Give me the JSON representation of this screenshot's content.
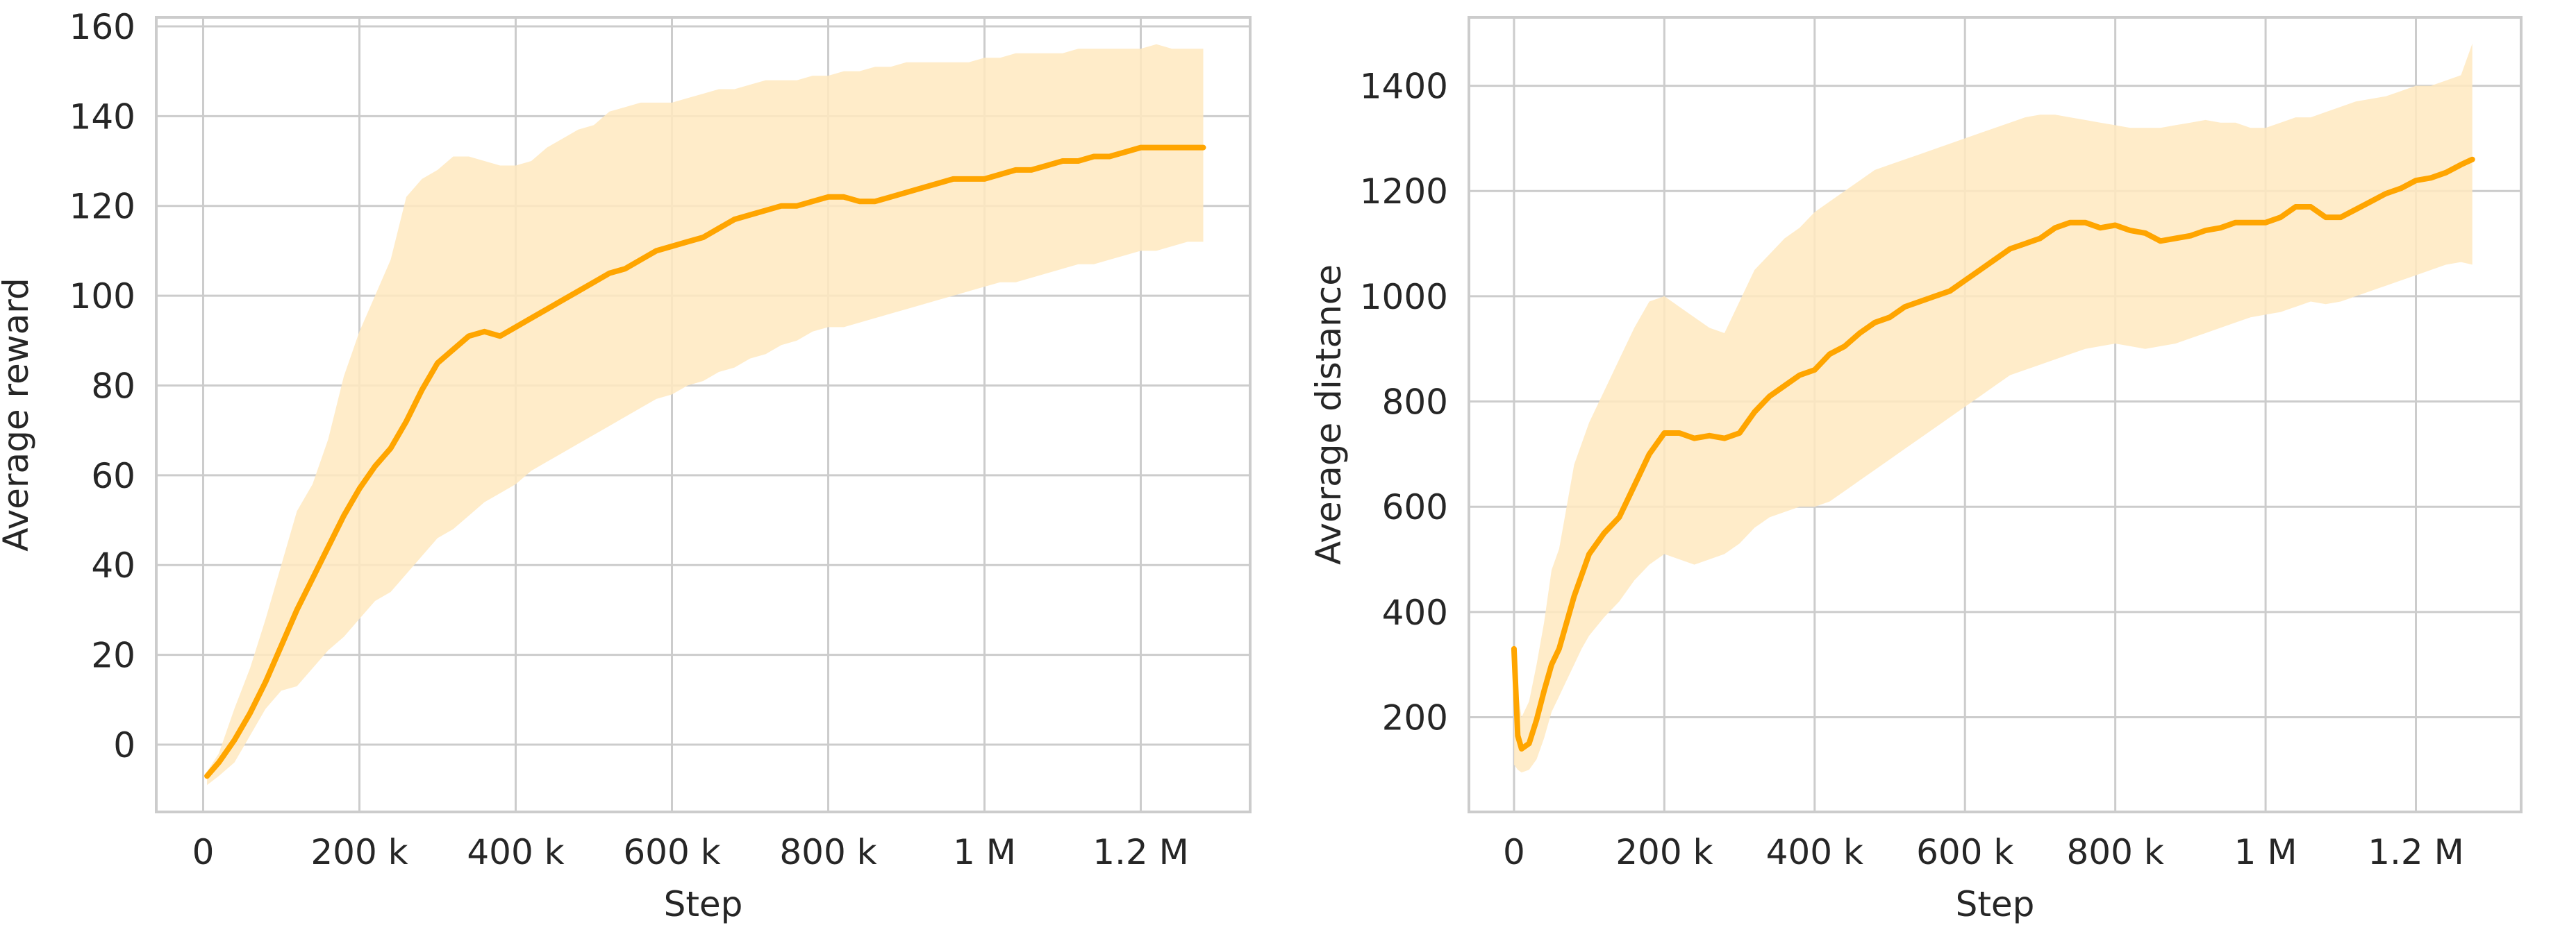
{
  "colors": {
    "line": "#ffa500",
    "band": "#ffe9bf",
    "grid": "#cccccc",
    "text": "#262626"
  },
  "chart_data": [
    {
      "type": "line",
      "title": "",
      "xlabel": "Step",
      "ylabel": "Average reward",
      "xlim": [
        -60000,
        1340000
      ],
      "ylim": [
        -15,
        162
      ],
      "grid": true,
      "xticks": [
        {
          "value": 0,
          "label": "0"
        },
        {
          "value": 200000,
          "label": "200 k"
        },
        {
          "value": 400000,
          "label": "400 k"
        },
        {
          "value": 600000,
          "label": "600 k"
        },
        {
          "value": 800000,
          "label": "800 k"
        },
        {
          "value": 1000000,
          "label": "1 M"
        },
        {
          "value": 1200000,
          "label": "1.2 M"
        }
      ],
      "yticks": [
        {
          "value": 0,
          "label": "0"
        },
        {
          "value": 20,
          "label": "20"
        },
        {
          "value": 40,
          "label": "40"
        },
        {
          "value": 60,
          "label": "60"
        },
        {
          "value": 80,
          "label": "80"
        },
        {
          "value": 100,
          "label": "100"
        },
        {
          "value": 120,
          "label": "120"
        },
        {
          "value": 140,
          "label": "140"
        },
        {
          "value": 160,
          "label": "160"
        }
      ],
      "series": [
        {
          "x": [
            5000,
            20000,
            40000,
            60000,
            80000,
            100000,
            120000,
            140000,
            160000,
            180000,
            200000,
            220000,
            240000,
            260000,
            280000,
            300000,
            320000,
            340000,
            360000,
            380000,
            400000,
            420000,
            440000,
            460000,
            480000,
            500000,
            520000,
            540000,
            560000,
            580000,
            600000,
            620000,
            640000,
            660000,
            680000,
            700000,
            720000,
            740000,
            760000,
            780000,
            800000,
            820000,
            840000,
            860000,
            880000,
            900000,
            920000,
            940000,
            960000,
            980000,
            1000000,
            1020000,
            1040000,
            1060000,
            1080000,
            1100000,
            1120000,
            1140000,
            1160000,
            1180000,
            1200000,
            1220000,
            1240000,
            1260000,
            1280000
          ],
          "y": [
            -7,
            -4,
            1,
            7,
            14,
            22,
            30,
            37,
            44,
            51,
            57,
            62,
            66,
            72,
            79,
            85,
            88,
            91,
            92,
            91,
            93,
            95,
            97,
            99,
            101,
            103,
            105,
            106,
            108,
            110,
            111,
            112,
            113,
            115,
            117,
            118,
            119,
            120,
            120,
            121,
            122,
            122,
            121,
            121,
            122,
            123,
            124,
            125,
            126,
            126,
            126,
            127,
            128,
            128,
            129,
            130,
            130,
            131,
            131,
            132,
            133,
            133,
            133,
            133,
            133
          ],
          "lower": [
            -9,
            -7,
            -4,
            2,
            8,
            12,
            13,
            17,
            21,
            24,
            28,
            32,
            34,
            38,
            42,
            46,
            48,
            51,
            54,
            56,
            58,
            61,
            63,
            65,
            67,
            69,
            71,
            73,
            75,
            77,
            78,
            80,
            81,
            83,
            84,
            86,
            87,
            89,
            90,
            92,
            93,
            93,
            94,
            95,
            96,
            97,
            98,
            99,
            100,
            101,
            102,
            103,
            103,
            104,
            105,
            106,
            107,
            107,
            108,
            109,
            110,
            110,
            111,
            112,
            112
          ],
          "upper": [
            -6,
            -2,
            8,
            17,
            28,
            40,
            52,
            58,
            68,
            82,
            92,
            100,
            108,
            122,
            126,
            128,
            131,
            131,
            130,
            129,
            129,
            130,
            133,
            135,
            137,
            138,
            141,
            142,
            143,
            143,
            143,
            144,
            145,
            146,
            146,
            147,
            148,
            148,
            148,
            149,
            149,
            150,
            150,
            151,
            151,
            152,
            152,
            152,
            152,
            152,
            153,
            153,
            154,
            154,
            154,
            154,
            155,
            155,
            155,
            155,
            155,
            156,
            155,
            155,
            155
          ]
        }
      ]
    },
    {
      "type": "line",
      "title": "",
      "xlabel": "Step",
      "ylabel": "Average distance",
      "xlim": [
        -60000,
        1340000
      ],
      "ylim": [
        20,
        1530
      ],
      "grid": true,
      "xticks": [
        {
          "value": 0,
          "label": "0"
        },
        {
          "value": 200000,
          "label": "200 k"
        },
        {
          "value": 400000,
          "label": "400 k"
        },
        {
          "value": 600000,
          "label": "600 k"
        },
        {
          "value": 800000,
          "label": "800 k"
        },
        {
          "value": 1000000,
          "label": "1 M"
        },
        {
          "value": 1200000,
          "label": "1.2 M"
        }
      ],
      "yticks": [
        {
          "value": 200,
          "label": "200"
        },
        {
          "value": 400,
          "label": "400"
        },
        {
          "value": 600,
          "label": "600"
        },
        {
          "value": 800,
          "label": "800"
        },
        {
          "value": 1000,
          "label": "1000"
        },
        {
          "value": 1200,
          "label": "1200"
        },
        {
          "value": 1400,
          "label": "1400"
        }
      ],
      "series": [
        {
          "x": [
            0,
            5000,
            10000,
            20000,
            30000,
            40000,
            50000,
            60000,
            70000,
            80000,
            90000,
            100000,
            120000,
            140000,
            160000,
            180000,
            200000,
            220000,
            240000,
            260000,
            280000,
            300000,
            320000,
            340000,
            360000,
            380000,
            400000,
            420000,
            440000,
            460000,
            480000,
            500000,
            520000,
            540000,
            560000,
            580000,
            600000,
            620000,
            640000,
            660000,
            680000,
            700000,
            720000,
            740000,
            760000,
            780000,
            800000,
            820000,
            840000,
            860000,
            880000,
            900000,
            920000,
            940000,
            960000,
            980000,
            1000000,
            1020000,
            1040000,
            1060000,
            1080000,
            1100000,
            1120000,
            1140000,
            1160000,
            1180000,
            1200000,
            1220000,
            1240000,
            1260000,
            1275000
          ],
          "y": [
            330,
            165,
            140,
            150,
            195,
            250,
            300,
            330,
            380,
            430,
            470,
            510,
            550,
            580,
            640,
            700,
            740,
            740,
            730,
            735,
            730,
            740,
            780,
            810,
            830,
            850,
            860,
            890,
            905,
            930,
            950,
            960,
            980,
            990,
            1000,
            1010,
            1030,
            1050,
            1070,
            1090,
            1100,
            1110,
            1130,
            1140,
            1140,
            1130,
            1135,
            1125,
            1120,
            1105,
            1110,
            1115,
            1125,
            1130,
            1140,
            1140,
            1140,
            1150,
            1170,
            1170,
            1150,
            1150,
            1165,
            1180,
            1195,
            1205,
            1220,
            1225,
            1235,
            1250,
            1260
          ],
          "lower": [
            110,
            100,
            95,
            100,
            120,
            160,
            210,
            240,
            270,
            300,
            330,
            355,
            390,
            420,
            460,
            490,
            510,
            500,
            490,
            500,
            510,
            530,
            560,
            580,
            590,
            600,
            600,
            610,
            630,
            650,
            670,
            690,
            710,
            730,
            750,
            770,
            790,
            810,
            830,
            850,
            860,
            870,
            880,
            890,
            900,
            905,
            910,
            905,
            900,
            905,
            910,
            920,
            930,
            940,
            950,
            960,
            965,
            970,
            980,
            990,
            985,
            990,
            1000,
            1010,
            1020,
            1030,
            1040,
            1050,
            1060,
            1065,
            1060
          ],
          "upper": [
            330,
            250,
            200,
            230,
            300,
            380,
            480,
            520,
            600,
            680,
            720,
            760,
            820,
            880,
            940,
            990,
            1000,
            980,
            960,
            940,
            930,
            990,
            1050,
            1080,
            1110,
            1130,
            1160,
            1180,
            1200,
            1220,
            1240,
            1250,
            1260,
            1270,
            1280,
            1290,
            1300,
            1310,
            1320,
            1330,
            1340,
            1345,
            1345,
            1340,
            1335,
            1330,
            1325,
            1320,
            1320,
            1320,
            1325,
            1330,
            1335,
            1330,
            1330,
            1320,
            1320,
            1330,
            1340,
            1340,
            1350,
            1360,
            1370,
            1375,
            1380,
            1390,
            1400,
            1400,
            1410,
            1420,
            1480
          ]
        }
      ]
    }
  ]
}
